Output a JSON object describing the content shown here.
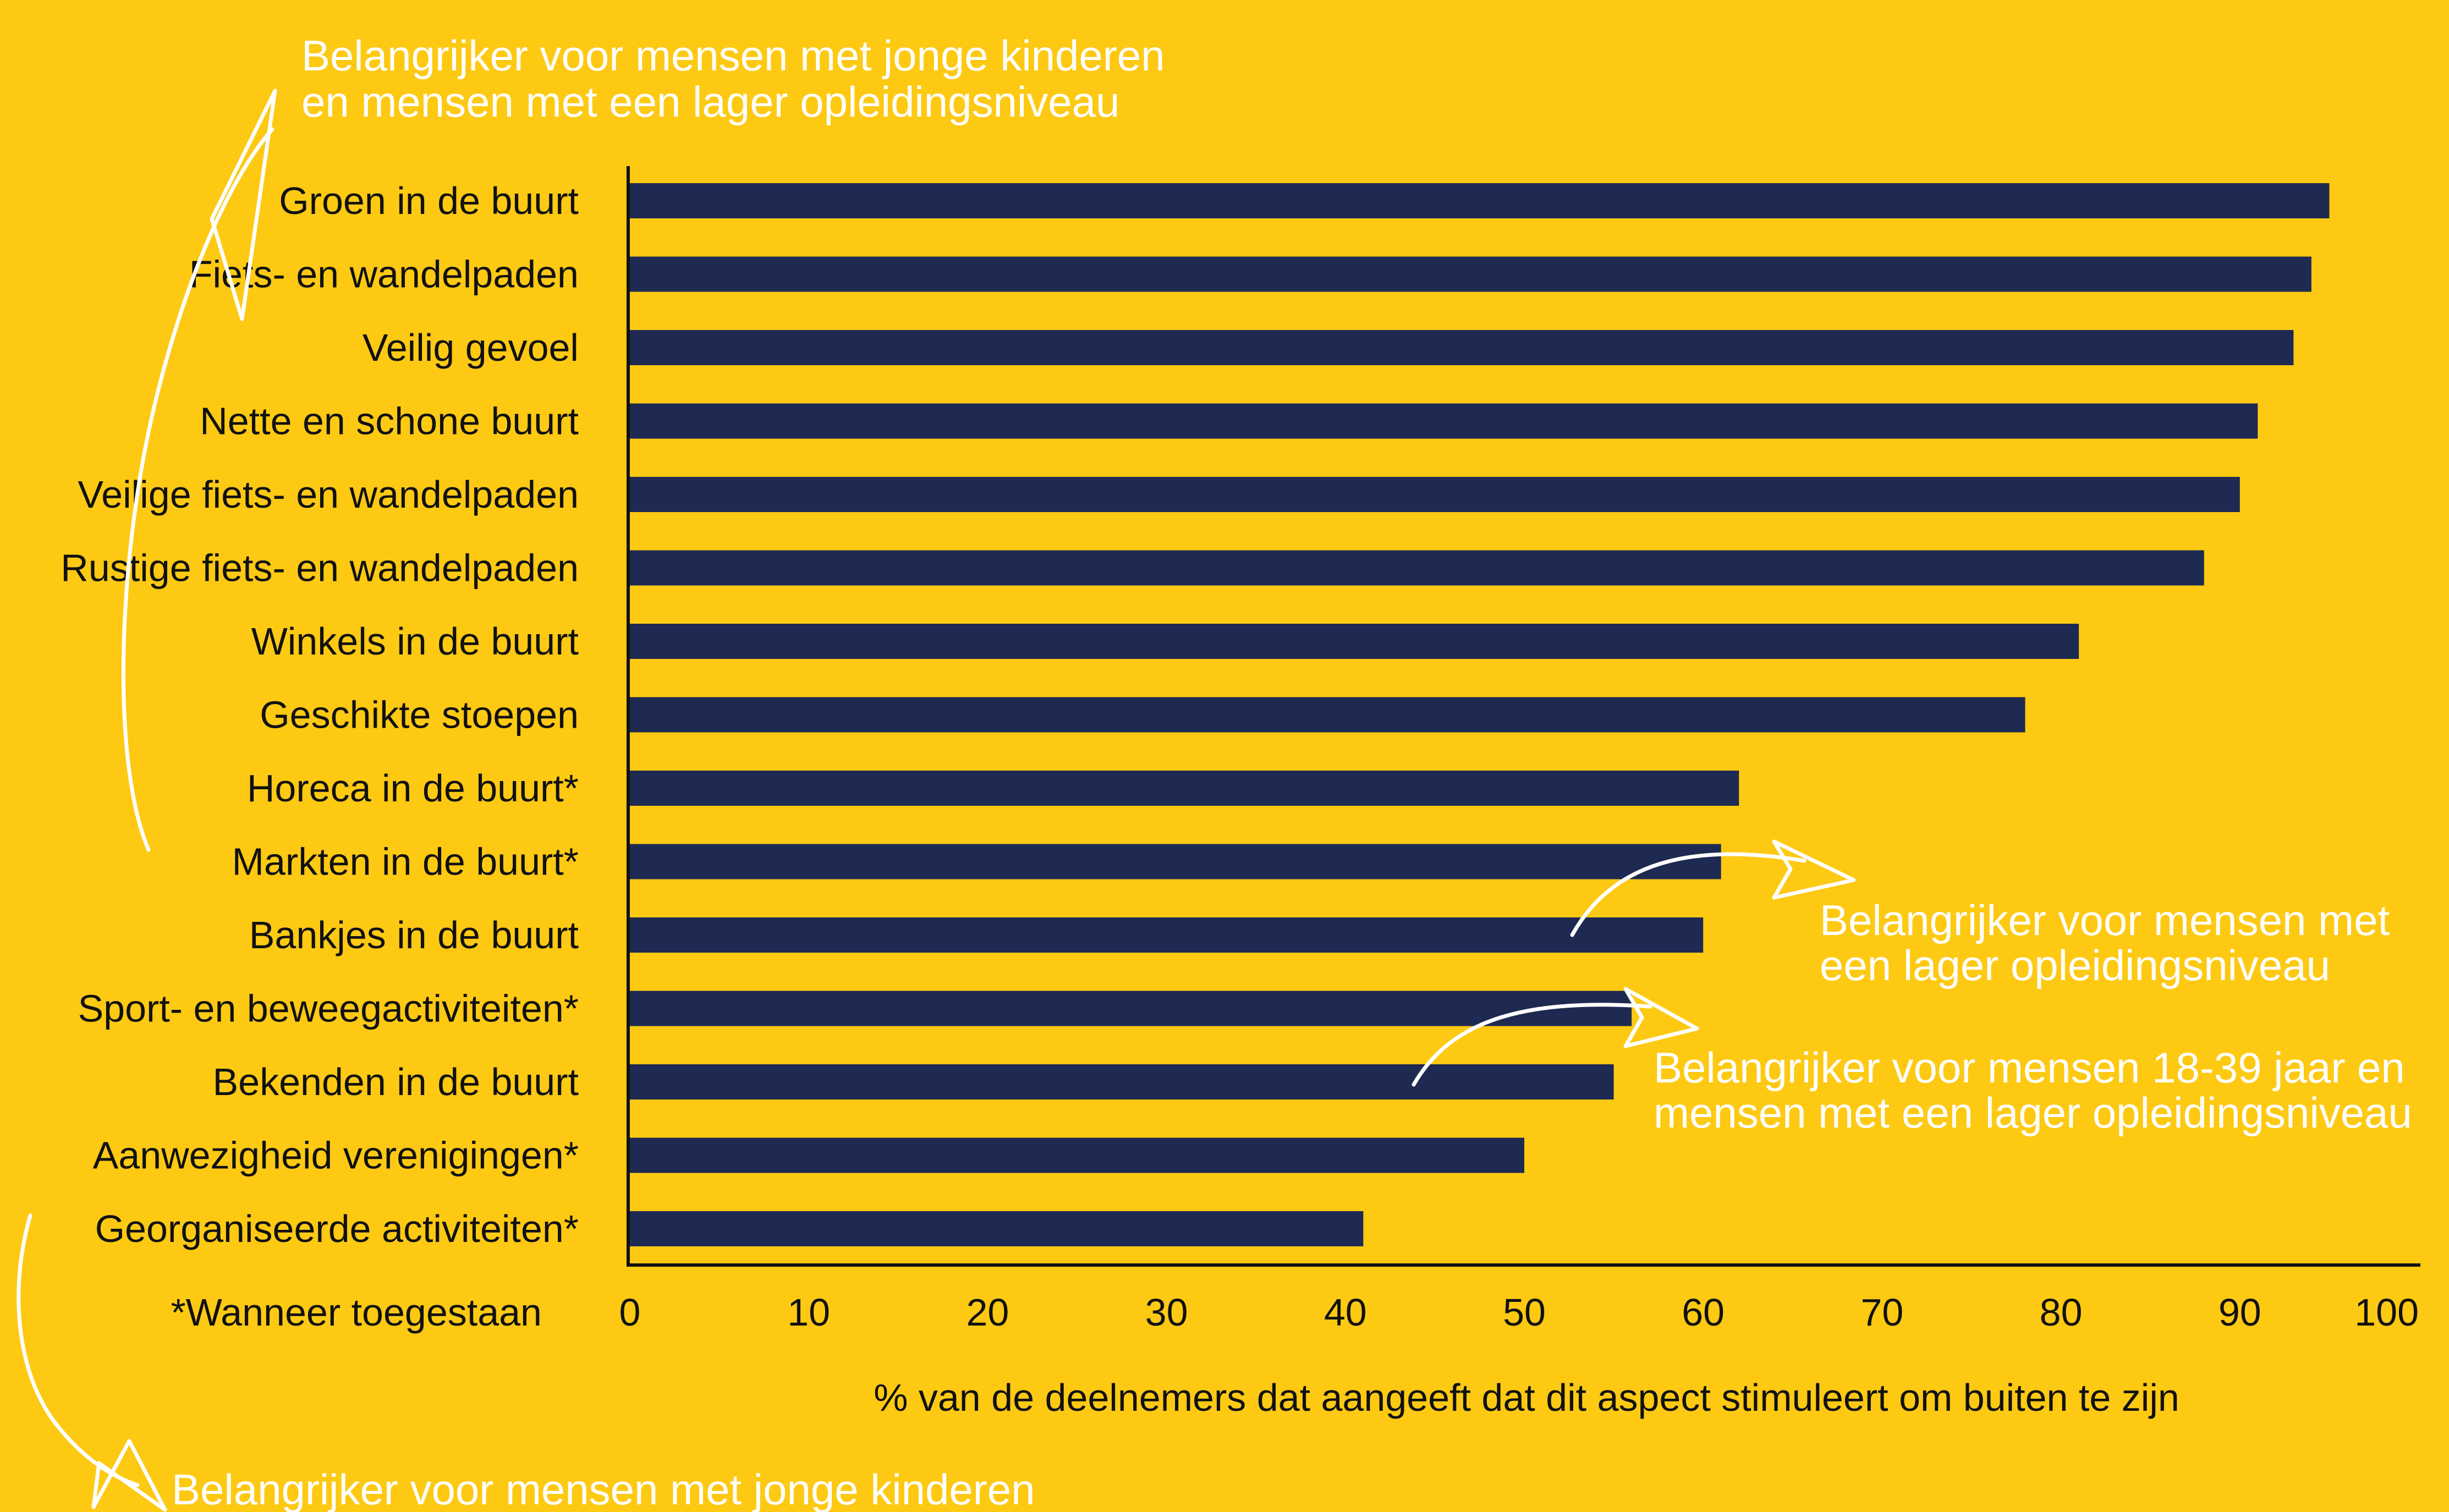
{
  "colors": {
    "background": "#FDC913",
    "bar": "#1E2A52",
    "annotation": "#FFFFFF",
    "text": "#111111"
  },
  "chart_data": {
    "type": "bar",
    "orientation": "horizontal",
    "title": "",
    "xlabel": "% van de deelnemers dat aangeeft dat dit aspect stimuleert om buiten te zijn",
    "ylabel": "",
    "xlim": [
      0,
      100
    ],
    "xticks": [
      "0",
      "10",
      "20",
      "30",
      "40",
      "50",
      "60",
      "70",
      "80",
      "90",
      "100"
    ],
    "grid": false,
    "categories": [
      "Groen in de buurt",
      "Fiets- en wandelpaden",
      "Veilig gevoel",
      "Nette en schone buurt",
      "Veilige fiets- en wandelpaden",
      "Rustige fiets- en wandelpaden",
      "Winkels in de buurt",
      "Geschikte stoepen",
      "Horeca in de buurt*",
      "Markten in de buurt*",
      "Bankjes in de buurt",
      "Sport- en beweegactiviteiten*",
      "Bekenden in de buurt",
      "Aanwezigheid verenigingen*",
      "Georganiseerde activiteiten*"
    ],
    "values": [
      95,
      94,
      93,
      91,
      90,
      88,
      81,
      78,
      62,
      61,
      60,
      56,
      55,
      50,
      41
    ],
    "footnote": "*Wanneer toegestaan",
    "annotations": [
      {
        "id": "top",
        "lines": [
          "Belangrijker voor mensen met jonge kinderen",
          "en mensen met een lager opleidingsniveau"
        ]
      },
      {
        "id": "markten",
        "lines": [
          "Belangrijker voor mensen met",
          "een lager opleidingsniveau"
        ]
      },
      {
        "id": "sport",
        "lines": [
          "Belangrijker voor mensen 18-39 jaar en",
          "mensen met een lager opleidingsniveau"
        ]
      },
      {
        "id": "bottom",
        "lines": [
          "Belangrijker voor mensen met jonge kinderen"
        ]
      }
    ]
  }
}
